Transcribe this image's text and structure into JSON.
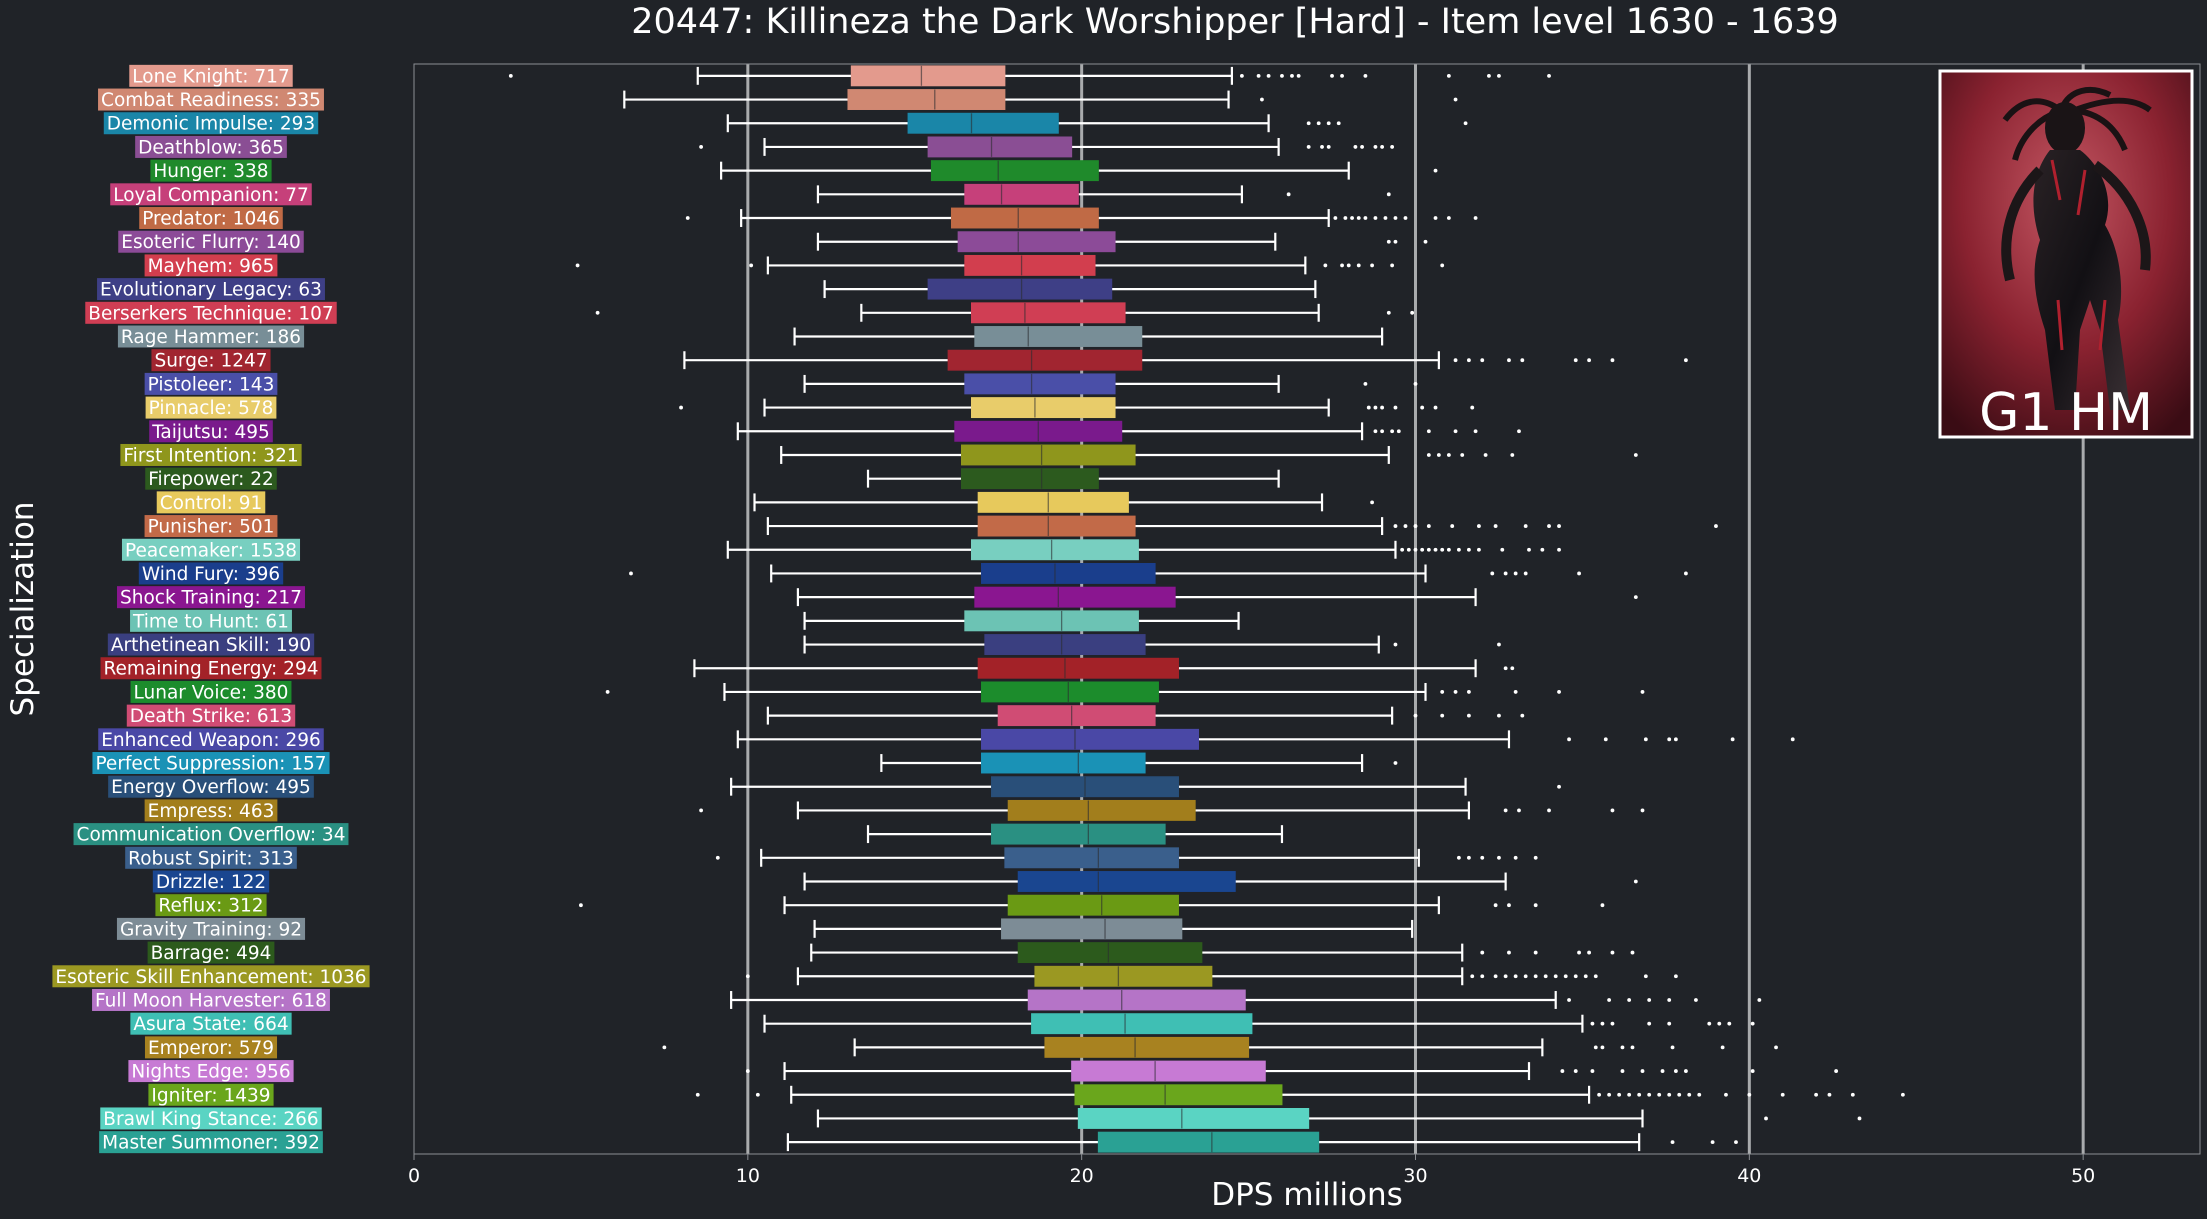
{
  "chart_data": {
    "type": "boxplot",
    "title": "20447: Killineza the Dark Worshipper [Hard] - Item level 1630 - 1639",
    "xlabel": "DPS millions",
    "ylabel": "Specialization",
    "xlim": [
      0,
      53.5
    ],
    "xticks": [
      0,
      10,
      20,
      30,
      40,
      50
    ],
    "grid_x": [
      10,
      20,
      30,
      40,
      50
    ],
    "median_line": 20,
    "badge": "G1 HM",
    "badge_image": "raid-boss-portrait",
    "series": [
      {
        "label": "Lone Knight: 717",
        "color": "#e39a8d",
        "whislo": 8.5,
        "q1": 13.1,
        "med": 15.2,
        "q3": 17.7,
        "whishi": 24.5,
        "fliers": [
          2.9,
          24.8,
          25.3,
          25.6,
          26.0,
          26.3,
          26.5,
          27.5,
          27.8,
          28.5,
          31.0,
          32.2,
          32.5,
          34.0
        ]
      },
      {
        "label": "Combat Readiness: 335",
        "color": "#d08872",
        "whislo": 6.3,
        "q1": 13.0,
        "med": 15.6,
        "q3": 17.7,
        "whishi": 24.4,
        "fliers": [
          25.4,
          31.2
        ]
      },
      {
        "label": "Demonic Impulse: 293",
        "color": "#1a86a8",
        "whislo": 9.4,
        "q1": 14.8,
        "med": 16.7,
        "q3": 19.3,
        "whishi": 25.6,
        "fliers": [
          26.8,
          27.1,
          27.4,
          27.7,
          31.5
        ]
      },
      {
        "label": "Deathblow: 365",
        "color": "#8a4e94",
        "whislo": 10.5,
        "q1": 15.4,
        "med": 17.3,
        "q3": 19.7,
        "whishi": 25.9,
        "fliers": [
          8.6,
          26.8,
          27.2,
          27.4,
          28.2,
          28.4,
          28.8,
          29.0,
          29.3
        ]
      },
      {
        "label": "Hunger: 338",
        "color": "#1f8a2b",
        "whislo": 9.2,
        "q1": 15.5,
        "med": 17.5,
        "q3": 20.5,
        "whishi": 28.0,
        "fliers": [
          30.6
        ]
      },
      {
        "label": "Loyal Companion: 77",
        "color": "#c6407a",
        "whislo": 12.1,
        "q1": 16.5,
        "med": 17.6,
        "q3": 19.9,
        "whishi": 24.8,
        "fliers": [
          26.2,
          29.2
        ]
      },
      {
        "label": "Predator: 1046",
        "color": "#c06a45",
        "whislo": 9.8,
        "q1": 16.1,
        "med": 18.1,
        "q3": 20.5,
        "whishi": 27.4,
        "fliers": [
          8.2,
          27.6,
          27.9,
          28.1,
          28.3,
          28.5,
          28.8,
          29.1,
          29.4,
          29.7,
          30.6,
          31.0,
          31.8
        ]
      },
      {
        "label": "Esoteric Flurry: 140",
        "color": "#8c4b98",
        "whislo": 12.1,
        "q1": 16.3,
        "med": 18.1,
        "q3": 21.0,
        "whishi": 25.8,
        "fliers": [
          29.2,
          29.4,
          30.3
        ]
      },
      {
        "label": "Mayhem: 965",
        "color": "#d23e4e",
        "whislo": 10.6,
        "q1": 16.5,
        "med": 18.2,
        "q3": 20.4,
        "whishi": 26.7,
        "fliers": [
          4.9,
          10.1,
          27.3,
          27.8,
          28.0,
          28.3,
          28.7,
          29.3,
          30.8
        ]
      },
      {
        "label": "Evolutionary Legacy: 63",
        "color": "#3e3f86",
        "whislo": 12.3,
        "q1": 15.4,
        "med": 18.2,
        "q3": 20.9,
        "whishi": 27.0,
        "fliers": []
      },
      {
        "label": "Berserkers Technique: 107",
        "color": "#d03e54",
        "whislo": 13.4,
        "q1": 16.7,
        "med": 18.3,
        "q3": 21.3,
        "whishi": 27.1,
        "fliers": [
          5.5,
          29.2,
          29.9
        ]
      },
      {
        "label": "Rage Hammer: 186",
        "color": "#788e97",
        "whislo": 11.4,
        "q1": 16.8,
        "med": 18.4,
        "q3": 21.8,
        "whishi": 29.0,
        "fliers": []
      },
      {
        "label": "Surge: 1247",
        "color": "#a12530",
        "whislo": 8.1,
        "q1": 16.0,
        "med": 18.5,
        "q3": 21.8,
        "whishi": 30.7,
        "fliers": [
          31.2,
          31.6,
          32.0,
          32.8,
          33.2,
          34.8,
          35.2,
          35.9,
          38.1
        ]
      },
      {
        "label": "Pistoleer: 143",
        "color": "#4a4fa8",
        "whislo": 11.7,
        "q1": 16.5,
        "med": 18.5,
        "q3": 21.0,
        "whishi": 25.9,
        "fliers": [
          28.5,
          30.0
        ]
      },
      {
        "label": "Pinnacle: 578",
        "color": "#e8cc6a",
        "whislo": 10.5,
        "q1": 16.7,
        "med": 18.6,
        "q3": 21.0,
        "whishi": 27.4,
        "fliers": [
          8.0,
          28.6,
          28.8,
          29.0,
          29.4,
          30.2,
          30.6,
          31.7
        ]
      },
      {
        "label": "Taijutsu: 495",
        "color": "#7a1a8c",
        "whislo": 9.7,
        "q1": 16.2,
        "med": 18.7,
        "q3": 21.2,
        "whishi": 28.4,
        "fliers": [
          28.8,
          29.0,
          29.3,
          29.5,
          30.4,
          31.2,
          31.8,
          33.1
        ]
      },
      {
        "label": "First Intention: 321",
        "color": "#8f961c",
        "whislo": 11.0,
        "q1": 16.4,
        "med": 18.8,
        "q3": 21.6,
        "whishi": 29.2,
        "fliers": [
          30.4,
          30.7,
          31.0,
          31.4,
          32.1,
          32.9,
          36.6
        ]
      },
      {
        "label": "Firepower: 22",
        "color": "#2c5a1e",
        "whislo": 13.6,
        "q1": 16.4,
        "med": 18.8,
        "q3": 20.5,
        "whishi": 25.9,
        "fliers": []
      },
      {
        "label": "Control: 91",
        "color": "#e7c95c",
        "whislo": 10.2,
        "q1": 16.9,
        "med": 19.0,
        "q3": 21.4,
        "whishi": 27.2,
        "fliers": [
          28.7
        ]
      },
      {
        "label": "Punisher: 501",
        "color": "#c26a48",
        "whislo": 10.6,
        "q1": 16.9,
        "med": 19.0,
        "q3": 21.6,
        "whishi": 29.0,
        "fliers": [
          29.4,
          29.7,
          30.0,
          30.4,
          31.1,
          31.9,
          32.4,
          33.3,
          34.0,
          34.3,
          39.0
        ]
      },
      {
        "label": "Peacemaker: 1538",
        "color": "#78cfc0",
        "whislo": 9.4,
        "q1": 16.7,
        "med": 19.1,
        "q3": 21.7,
        "whishi": 29.4,
        "fliers": [
          29.6,
          29.8,
          30.0,
          30.2,
          30.4,
          30.6,
          30.8,
          31.0,
          31.3,
          31.6,
          31.9,
          32.6,
          33.4,
          33.8,
          34.3
        ]
      },
      {
        "label": "Wind Fury: 396",
        "color": "#1a3e8c",
        "whislo": 10.7,
        "q1": 17.0,
        "med": 19.2,
        "q3": 22.2,
        "whishi": 30.3,
        "fliers": [
          6.5,
          32.3,
          32.7,
          33.0,
          33.3,
          34.9,
          38.1
        ]
      },
      {
        "label": "Shock Training: 217",
        "color": "#8a1690",
        "whislo": 11.5,
        "q1": 16.8,
        "med": 19.3,
        "q3": 22.8,
        "whishi": 31.8,
        "fliers": [
          36.6
        ]
      },
      {
        "label": "Time to Hunt: 61",
        "color": "#6cc3b4",
        "whislo": 11.7,
        "q1": 16.5,
        "med": 19.4,
        "q3": 21.7,
        "whishi": 24.7,
        "fliers": []
      },
      {
        "label": "Arthetinean Skill: 190",
        "color": "#3a3f80",
        "whislo": 11.7,
        "q1": 17.1,
        "med": 19.4,
        "q3": 21.9,
        "whishi": 28.9,
        "fliers": [
          29.4,
          32.5
        ]
      },
      {
        "label": "Remaining Energy: 294",
        "color": "#a32228",
        "whislo": 8.4,
        "q1": 16.9,
        "med": 19.5,
        "q3": 22.9,
        "whishi": 31.8,
        "fliers": [
          32.7,
          32.9
        ]
      },
      {
        "label": "Lunar Voice: 380",
        "color": "#1c8c2c",
        "whislo": 9.3,
        "q1": 17.0,
        "med": 19.6,
        "q3": 22.3,
        "whishi": 30.3,
        "fliers": [
          5.8,
          30.8,
          31.2,
          31.6,
          33.0,
          34.3,
          36.8
        ]
      },
      {
        "label": "Death Strike: 613",
        "color": "#d04c74",
        "whislo": 10.6,
        "q1": 17.5,
        "med": 19.7,
        "q3": 22.2,
        "whishi": 29.3,
        "fliers": [
          30.0,
          30.8,
          31.6,
          32.5,
          33.2
        ]
      },
      {
        "label": "Enhanced Weapon: 296",
        "color": "#4a48a6",
        "whislo": 9.7,
        "q1": 17.0,
        "med": 19.8,
        "q3": 23.5,
        "whishi": 32.8,
        "fliers": [
          34.6,
          35.7,
          36.9,
          37.6,
          37.8,
          39.5,
          41.3
        ]
      },
      {
        "label": "Perfect Suppression: 157",
        "color": "#1a92b6",
        "whislo": 14.0,
        "q1": 17.0,
        "med": 19.9,
        "q3": 21.9,
        "whishi": 28.4,
        "fliers": [
          29.4
        ]
      },
      {
        "label": "Energy Overflow: 495",
        "color": "#294f79",
        "whislo": 9.5,
        "q1": 17.3,
        "med": 20.1,
        "q3": 22.9,
        "whishi": 31.5,
        "fliers": [
          34.3
        ]
      },
      {
        "label": "Empress: 463",
        "color": "#a27e1c",
        "whislo": 11.5,
        "q1": 17.8,
        "med": 20.2,
        "q3": 23.4,
        "whishi": 31.6,
        "fliers": [
          8.6,
          32.7,
          33.1,
          34.0,
          35.9,
          36.8
        ]
      },
      {
        "label": "Communication Overflow: 34",
        "color": "#2a9082",
        "whislo": 13.6,
        "q1": 17.3,
        "med": 20.2,
        "q3": 22.5,
        "whishi": 26.0,
        "fliers": []
      },
      {
        "label": "Robust Spirit: 313",
        "color": "#3a5f8c",
        "whislo": 10.4,
        "q1": 17.7,
        "med": 20.5,
        "q3": 22.9,
        "whishi": 30.1,
        "fliers": [
          9.1,
          31.3,
          31.6,
          32.0,
          32.5,
          33.0,
          33.6
        ]
      },
      {
        "label": "Drizzle: 122",
        "color": "#1a4690",
        "whislo": 11.7,
        "q1": 18.1,
        "med": 20.5,
        "q3": 24.6,
        "whishi": 32.7,
        "fliers": [
          36.6
        ]
      },
      {
        "label": "Reflux: 312",
        "color": "#6a9a14",
        "whislo": 11.1,
        "q1": 17.8,
        "med": 20.6,
        "q3": 22.9,
        "whishi": 30.7,
        "fliers": [
          5.0,
          32.4,
          32.8,
          33.6,
          35.6
        ]
      },
      {
        "label": "Gravity Training: 92",
        "color": "#7d8c96",
        "whislo": 12.0,
        "q1": 17.6,
        "med": 20.7,
        "q3": 23.0,
        "whishi": 29.9,
        "fliers": []
      },
      {
        "label": "Barrage: 494",
        "color": "#2c5a1c",
        "whislo": 11.9,
        "q1": 18.1,
        "med": 20.8,
        "q3": 23.6,
        "whishi": 31.4,
        "fliers": [
          32.0,
          32.8,
          33.6,
          34.9,
          35.2,
          35.9,
          36.5
        ]
      },
      {
        "label": "Esoteric Skill Enhancement: 1036",
        "color": "#9b9822",
        "whislo": 11.5,
        "q1": 18.6,
        "med": 21.1,
        "q3": 23.9,
        "whishi": 31.4,
        "fliers": [
          10.0,
          31.7,
          32.0,
          32.4,
          32.7,
          33.0,
          33.3,
          33.6,
          33.9,
          34.2,
          34.5,
          34.8,
          35.1,
          35.4,
          36.9,
          37.8
        ]
      },
      {
        "label": "Full Moon Harvester: 618",
        "color": "#b574c7",
        "whislo": 9.5,
        "q1": 18.4,
        "med": 21.2,
        "q3": 24.9,
        "whishi": 34.2,
        "fliers": [
          34.6,
          35.8,
          36.4,
          37.0,
          37.6,
          38.4,
          40.3
        ]
      },
      {
        "label": "Asura State: 664",
        "color": "#3fbfb4",
        "whislo": 10.5,
        "q1": 18.5,
        "med": 21.3,
        "q3": 25.1,
        "whishi": 35.0,
        "fliers": [
          35.3,
          35.6,
          35.9,
          37.0,
          37.6,
          38.8,
          39.1,
          39.4,
          40.1
        ]
      },
      {
        "label": "Emperor: 579",
        "color": "#a88220",
        "whislo": 13.2,
        "q1": 18.9,
        "med": 21.6,
        "q3": 25.0,
        "whishi": 33.8,
        "fliers": [
          7.5,
          35.4,
          35.6,
          36.2,
          36.5,
          37.7,
          39.2,
          40.8
        ]
      },
      {
        "label": "Nights Edge: 956",
        "color": "#c77ad4",
        "whislo": 11.1,
        "q1": 19.7,
        "med": 22.2,
        "q3": 25.5,
        "whishi": 33.4,
        "fliers": [
          10.0,
          34.4,
          34.8,
          35.3,
          36.2,
          36.8,
          37.4,
          37.8,
          38.1,
          40.1,
          42.6
        ]
      },
      {
        "label": "Igniter: 1439",
        "color": "#6aa61c",
        "whislo": 11.3,
        "q1": 19.8,
        "med": 22.5,
        "q3": 26.0,
        "whishi": 35.2,
        "fliers": [
          8.5,
          10.3,
          35.5,
          35.8,
          36.1,
          36.4,
          36.7,
          37.0,
          37.3,
          37.6,
          37.9,
          38.2,
          38.5,
          39.3,
          40.0,
          41.0,
          42.0,
          42.4,
          43.1,
          44.6
        ]
      },
      {
        "label": "Brawl King Stance: 266",
        "color": "#5ad4c3",
        "whislo": 12.1,
        "q1": 19.9,
        "med": 23.0,
        "q3": 26.8,
        "whishi": 36.8,
        "fliers": [
          40.5,
          43.3
        ]
      },
      {
        "label": "Master Summoner: 392",
        "color": "#2aa194",
        "whislo": 11.2,
        "q1": 20.5,
        "med": 23.9,
        "q3": 27.1,
        "whishi": 36.7,
        "fliers": [
          37.7,
          38.9,
          39.6
        ]
      }
    ]
  }
}
